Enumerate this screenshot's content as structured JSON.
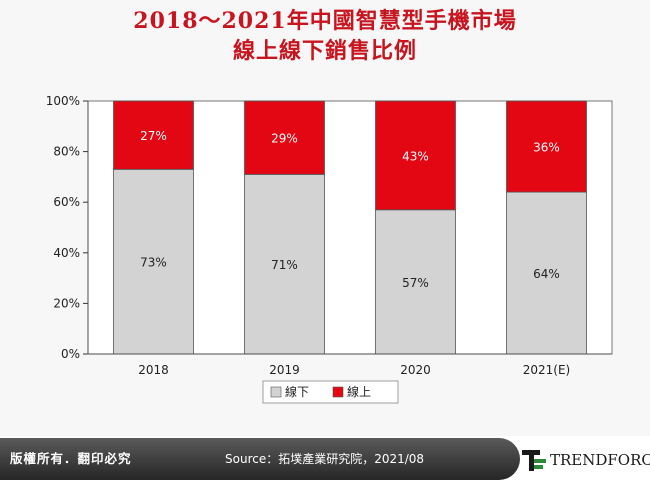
{
  "title": {
    "line1": "2018～2021年中國智慧型手機市場",
    "line2": "線上線下銷售比例"
  },
  "colors": {
    "offline": "#d3d3d3",
    "online": "#e30613",
    "title": "#c8141e"
  },
  "chart_data": {
    "type": "bar",
    "stacked": true,
    "categories": [
      "2018",
      "2019",
      "2020",
      "2021(E)"
    ],
    "series": [
      {
        "name": "線下",
        "values": [
          73,
          71,
          57,
          64
        ],
        "labels": [
          "73%",
          "71%",
          "57%",
          "64%"
        ],
        "color": "#d3d3d3"
      },
      {
        "name": "線上",
        "values": [
          27,
          29,
          43,
          36
        ],
        "labels": [
          "27%",
          "29%",
          "43%",
          "36%"
        ],
        "color": "#e30613"
      }
    ],
    "y_ticks": [
      "0%",
      "20%",
      "40%",
      "60%",
      "80%",
      "100%"
    ],
    "ylim": [
      0,
      100
    ],
    "legend_position": "bottom",
    "grid": false
  },
  "footer": {
    "rights": "版權所有．翻印必究",
    "source": "Source：拓墣產業研究院，2021/08",
    "logo": "TRENDFORCE"
  }
}
